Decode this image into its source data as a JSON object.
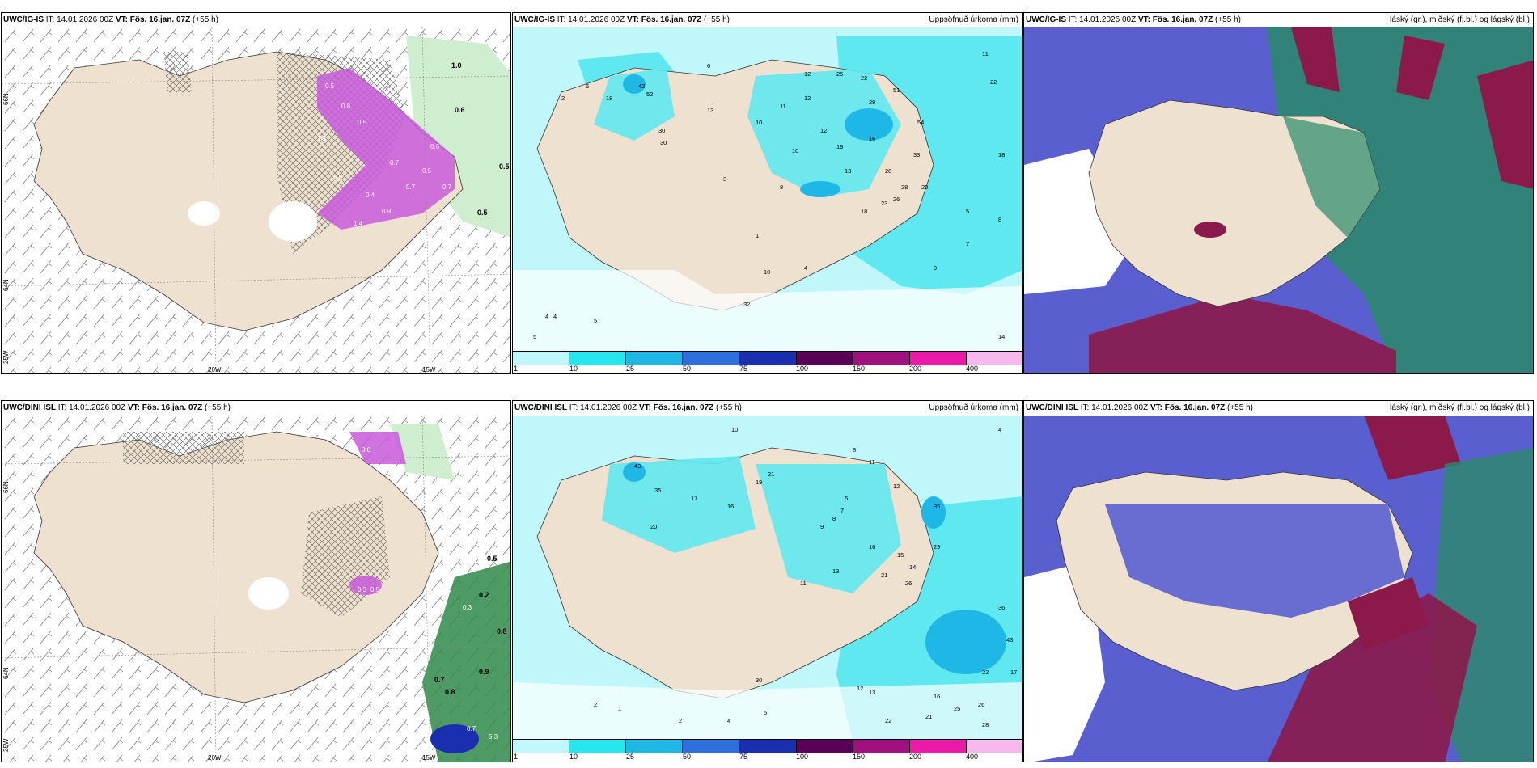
{
  "panels": {
    "p1": {
      "model": "UWC/IG-IS",
      "it_label": "IT:",
      "it": "14.01.2026 00Z",
      "vt_label": "VT:",
      "vt": "Fös. 16.jan. 07Z",
      "lead": "(+55 h)",
      "right": ""
    },
    "p2": {
      "model": "UWC/IG-IS",
      "it_label": "IT:",
      "it": "14.01.2026 00Z",
      "vt_label": "VT:",
      "vt": "Fös. 16.jan. 07Z",
      "lead": "(+55 h)",
      "right": "Uppsöfnuð úrkoma (mm)"
    },
    "p3": {
      "model": "UWC/IG-IS",
      "it_label": "IT:",
      "it": "14.01.2026 00Z",
      "vt_label": "VT:",
      "vt": "Fös. 16.jan. 07Z",
      "lead": "(+55 h)",
      "right": "Háský (gr.), miðský (fj.bl.) og lágský (bl.)"
    },
    "p4": {
      "model": "UWC/DINI ISL",
      "it_label": "IT:",
      "it": "14.01.2026 00Z",
      "vt_label": "VT:",
      "vt": "Fös. 16.jan. 07Z",
      "lead": "(+55 h)",
      "right": ""
    },
    "p5": {
      "model": "UWC/DINI ISL",
      "it_label": "IT:",
      "it": "14.01.2026 00Z",
      "vt_label": "VT:",
      "vt": "Fös. 16.jan. 07Z",
      "lead": "(+55 h)",
      "right": "Uppsöfnuð úrkoma (mm)"
    },
    "p6": {
      "model": "UWC/DINI ISL",
      "it_label": "IT:",
      "it": "14.01.2026 00Z",
      "vt_label": "VT:",
      "vt": "Fös. 16.jan. 07Z",
      "lead": "(+55 h)",
      "right": "Háský (gr.), miðský (fj.bl.) og lágský (bl.)"
    }
  },
  "grid_labels": {
    "lat66": "66N",
    "lat64": "64N",
    "lon25": "25W",
    "lon20": "20W",
    "lon15": "15W"
  },
  "legend": {
    "ticks": [
      "1",
      "10",
      "25",
      "50",
      "75",
      "100",
      "150",
      "200",
      "400"
    ],
    "colors": [
      "#bff7fb",
      "#28e6ee",
      "#1fb8e6",
      "#2e6fdc",
      "#1a2fb0",
      "#5b0057",
      "#a0107e",
      "#ec1aa8",
      "#f7b8ee"
    ]
  },
  "colors": {
    "land": "#efe1cf",
    "precip_light": "#bff7fb",
    "precip_mid": "#5fe8ef",
    "precip_high": "#1fb8e6",
    "snow": "#c85adc",
    "rain_green": "#9fe09f",
    "cloud_high": "#2a8a6a",
    "cloud_mid": "#8b1a4a",
    "cloud_low": "#5a5fd0"
  },
  "snow_values_top": [
    "1.0",
    "0.6",
    "0.5",
    "0.5",
    "0.5",
    "0.7",
    "0.5",
    "1.3",
    "0.8",
    "0.6",
    "0.5",
    "0.4",
    "0.9",
    "0.7",
    "0.5",
    "1.4",
    "0.7"
  ],
  "snow_values_bottom": [
    "0.5",
    "0.2",
    "0.3",
    "0.8",
    "0.7",
    "0.9",
    "0.8",
    "0.6",
    "0.5",
    "0.3",
    "0.5",
    "5.3",
    "0.7"
  ],
  "precip_values_top": [
    "42",
    "52",
    "30",
    "30",
    "13",
    "10",
    "10",
    "11",
    "12",
    "25",
    "22",
    "29",
    "28",
    "51",
    "54",
    "33",
    "18",
    "19",
    "13",
    "16",
    "23",
    "28",
    "26",
    "20",
    "18",
    "12",
    "32",
    "10",
    "14",
    "9",
    "8",
    "7",
    "5",
    "4",
    "4",
    "5",
    "5",
    "6",
    "2",
    "18",
    "11",
    "8",
    "1",
    "4",
    "3",
    "6",
    "12",
    "22"
  ],
  "precip_values_bottom": [
    "10",
    "4",
    "8",
    "11",
    "12",
    "43",
    "35",
    "21",
    "19",
    "20",
    "17",
    "16",
    "35",
    "13",
    "14",
    "15",
    "21",
    "26",
    "29",
    "16",
    "36",
    "43",
    "22",
    "17",
    "26",
    "25",
    "21",
    "28",
    "16",
    "12",
    "13",
    "22",
    "5",
    "4",
    "2",
    "1",
    "2",
    "30",
    "11",
    "9",
    "8",
    "7",
    "6"
  ]
}
